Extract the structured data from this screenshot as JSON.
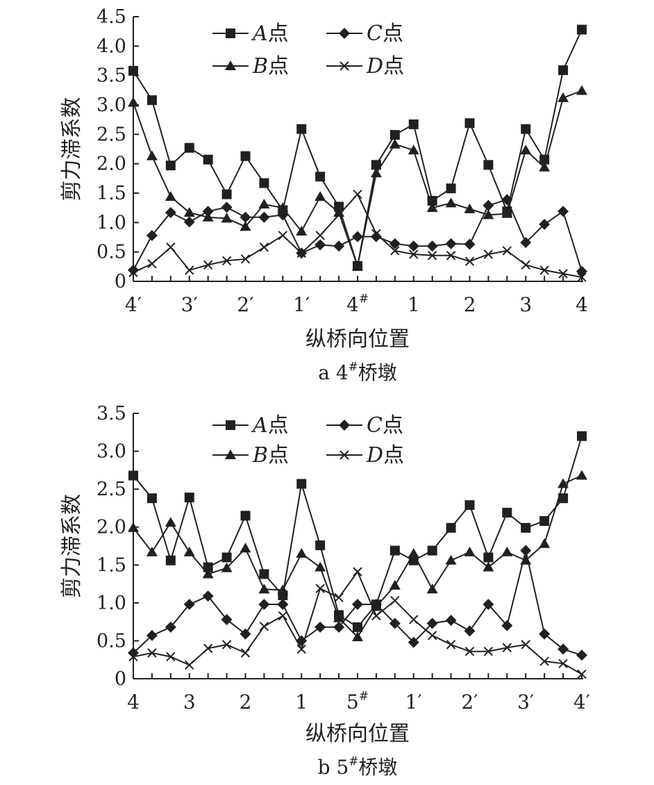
{
  "chart_data": [
    {
      "type": "line",
      "caption": "a 4#桥墩",
      "xlabel": "纵桥向位置",
      "ylabel": "剪力滞系数",
      "ylim": [
        0,
        4.5
      ],
      "ytick_step": 0.5,
      "yticks": [
        "0",
        "0.5",
        "1.0",
        "1.5",
        "2.0",
        "2.5",
        "3.0",
        "3.5",
        "4.0",
        "4.5"
      ],
      "xtick_labels": [
        "4′",
        "3′",
        "2′",
        "1′",
        "4#",
        "1",
        "2",
        "3",
        "4"
      ],
      "n_points": 25,
      "legend": [
        "A点",
        "B点",
        "C点",
        "D点"
      ],
      "legend_placement": "top-center",
      "series": [
        {
          "name": "A点",
          "marker": "square",
          "values": [
            3.58,
            3.08,
            1.97,
            2.27,
            2.07,
            1.48,
            2.13,
            1.67,
            1.21,
            2.59,
            1.78,
            1.27,
            0.26,
            1.98,
            2.49,
            2.67,
            1.37,
            1.58,
            2.69,
            1.98,
            1.19,
            2.59,
            2.07,
            3.59,
            4.28
          ]
        },
        {
          "name": "B点",
          "marker": "triangle",
          "values": [
            3.04,
            2.13,
            1.44,
            1.17,
            1.09,
            1.07,
            0.93,
            1.31,
            1.25,
            0.85,
            1.44,
            1.17,
            0.26,
            1.84,
            2.33,
            2.23,
            1.25,
            1.33,
            1.23,
            1.13,
            1.15,
            2.23,
            1.94,
            3.12,
            3.24
          ]
        },
        {
          "name": "C点",
          "marker": "diamond",
          "values": [
            0.19,
            0.78,
            1.17,
            1.01,
            1.19,
            1.26,
            1.09,
            1.09,
            1.13,
            0.48,
            0.62,
            0.6,
            0.76,
            0.76,
            0.64,
            0.6,
            0.6,
            0.64,
            0.63,
            1.29,
            1.39,
            0.66,
            0.97,
            1.19,
            0.17
          ]
        },
        {
          "name": "D点",
          "marker": "cross",
          "values": [
            0.15,
            0.3,
            0.58,
            0.19,
            0.28,
            0.35,
            0.38,
            0.58,
            0.78,
            0.48,
            0.78,
            1.13,
            1.48,
            0.81,
            0.52,
            0.46,
            0.44,
            0.44,
            0.34,
            0.46,
            0.52,
            0.28,
            0.19,
            0.13,
            0.07
          ]
        }
      ]
    },
    {
      "type": "line",
      "caption": "b 5#桥墩",
      "xlabel": "纵桥向位置",
      "ylabel": "剪力滞系数",
      "ylim": [
        0,
        3.5
      ],
      "ytick_step": 0.5,
      "yticks": [
        "0",
        "0.5",
        "1.0",
        "1.5",
        "2.0",
        "2.5",
        "3.0",
        "3.5"
      ],
      "xtick_labels": [
        "4",
        "3",
        "2",
        "1",
        "5#",
        "1′",
        "2′",
        "3′",
        "4′"
      ],
      "n_points": 25,
      "legend": [
        "A点",
        "B点",
        "C点",
        "D点"
      ],
      "legend_placement": "top-center",
      "series": [
        {
          "name": "A点",
          "marker": "square",
          "values": [
            2.68,
            2.38,
            1.56,
            2.39,
            1.47,
            1.6,
            2.15,
            1.38,
            1.1,
            2.57,
            1.76,
            0.84,
            0.68,
            0.98,
            1.69,
            1.56,
            1.69,
            1.99,
            2.29,
            1.6,
            2.19,
            1.99,
            2.08,
            2.38,
            3.2
          ]
        },
        {
          "name": "B点",
          "marker": "triangle",
          "values": [
            1.99,
            1.67,
            2.06,
            1.67,
            1.38,
            1.46,
            1.72,
            1.18,
            1.17,
            1.65,
            1.47,
            0.8,
            0.55,
            0.95,
            1.23,
            1.65,
            1.18,
            1.56,
            1.67,
            1.47,
            1.67,
            1.56,
            1.78,
            2.57,
            2.68
          ]
        },
        {
          "name": "C点",
          "marker": "diamond",
          "values": [
            0.34,
            0.57,
            0.68,
            0.98,
            1.09,
            0.78,
            0.59,
            0.98,
            0.98,
            0.5,
            0.68,
            0.68,
            0.98,
            0.98,
            0.73,
            0.48,
            0.73,
            0.77,
            0.63,
            0.98,
            0.7,
            1.69,
            0.59,
            0.39,
            0.31
          ]
        },
        {
          "name": "D点",
          "marker": "cross",
          "values": [
            0.29,
            0.34,
            0.29,
            0.18,
            0.4,
            0.45,
            0.34,
            0.69,
            0.83,
            0.39,
            1.19,
            1.07,
            1.41,
            0.83,
            1.03,
            0.78,
            0.57,
            0.45,
            0.36,
            0.36,
            0.41,
            0.45,
            0.23,
            0.2,
            0.06
          ]
        }
      ]
    }
  ]
}
